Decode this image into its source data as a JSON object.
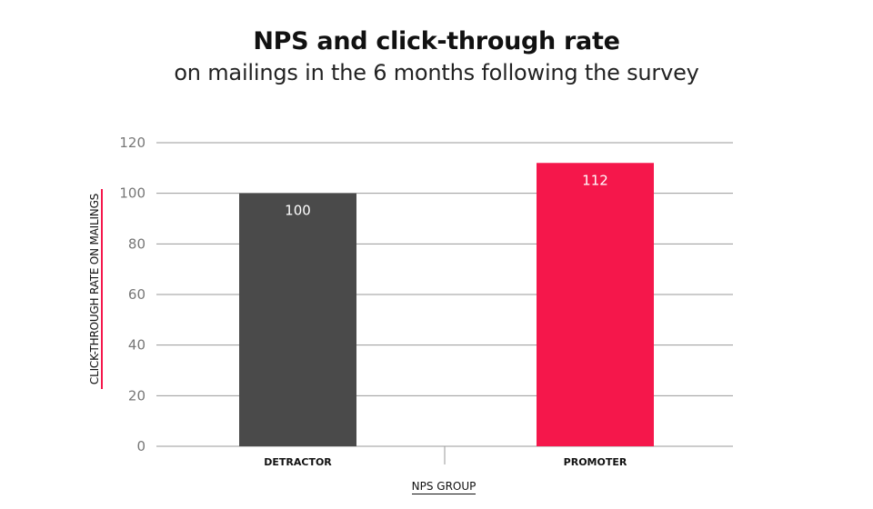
{
  "chart_data": {
    "type": "bar",
    "title": "NPS and click-through rate",
    "subtitle": "on mailings in the 6 months following the survey",
    "xlabel": "NPS GROUP",
    "ylabel": "CLICK-THROUGH RATE ON MAILINGS",
    "categories": [
      "DETRACTOR",
      "PROMOTER"
    ],
    "values": [
      100,
      112
    ],
    "data_labels": [
      "100",
      "112"
    ],
    "bar_colors": [
      "#4a4a4a",
      "#f5174b"
    ],
    "ylim": [
      0,
      120
    ],
    "yticks": [
      0,
      20,
      40,
      60,
      80,
      100,
      120
    ],
    "grid": true,
    "legend": "none"
  },
  "colors": {
    "detractor": "#4a4a4a",
    "promoter": "#f5174b",
    "grid": "#9a9a9a",
    "tick_text": "#777777"
  }
}
